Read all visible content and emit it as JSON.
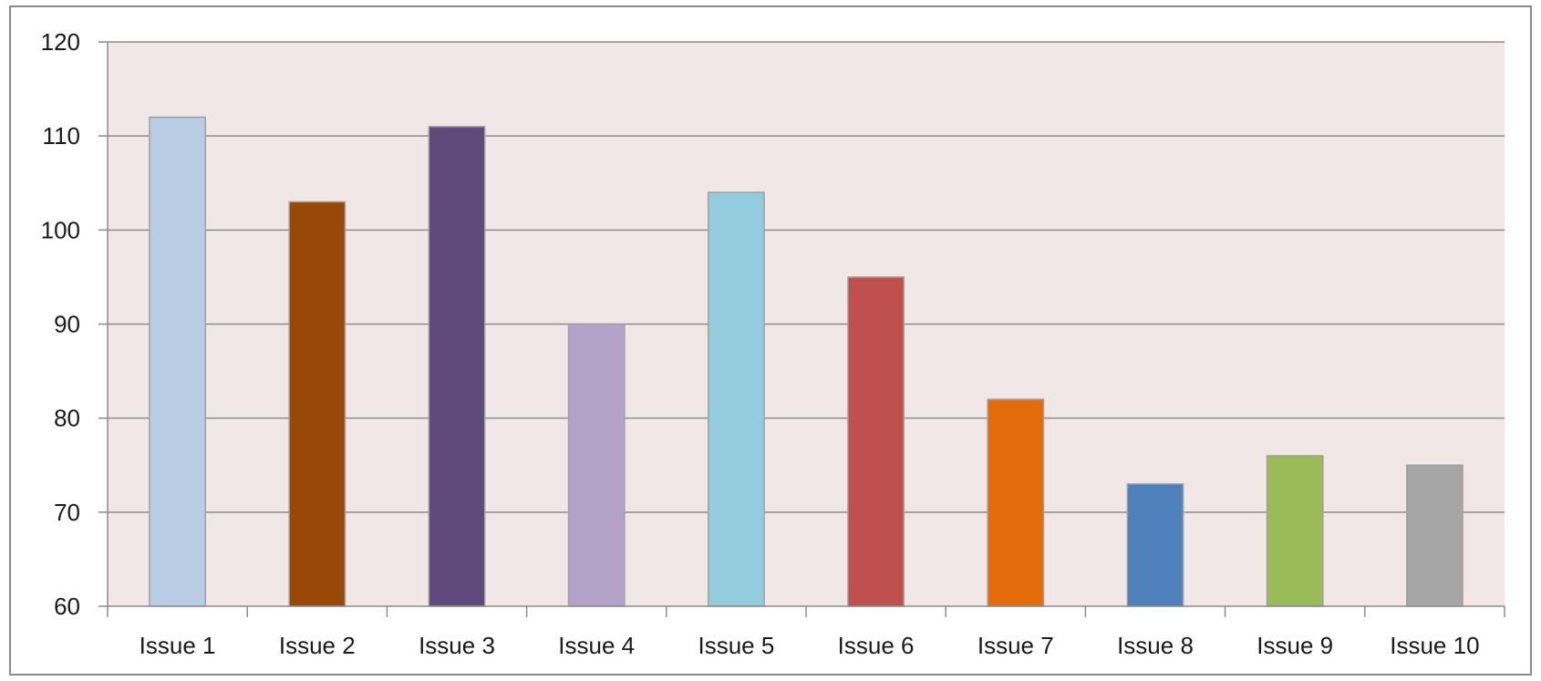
{
  "chart_data": {
    "type": "bar",
    "title": "",
    "xlabel": "",
    "ylabel": "",
    "categories": [
      "Issue 1",
      "Issue 2",
      "Issue 3",
      "Issue 4",
      "Issue 5",
      "Issue 6",
      "Issue 7",
      "Issue 8",
      "Issue 9",
      "Issue 10"
    ],
    "values": [
      112,
      103,
      111,
      90,
      104,
      95,
      82,
      73,
      76,
      75
    ],
    "ylim": [
      60,
      120
    ],
    "yticks": [
      60,
      70,
      80,
      90,
      100,
      110,
      120
    ],
    "grid": true,
    "legend": "none",
    "colors": {
      "bars": [
        "#b9cde5",
        "#984807",
        "#604a7b",
        "#b3a2c7",
        "#93cddd",
        "#c0504d",
        "#e46c0a",
        "#4f81bd",
        "#9bbb59",
        "#a6a6a6"
      ],
      "plot_background": "#f2e7e7",
      "gridline": "#8c8c8c",
      "bar_outline": "#a0a0a0"
    }
  }
}
